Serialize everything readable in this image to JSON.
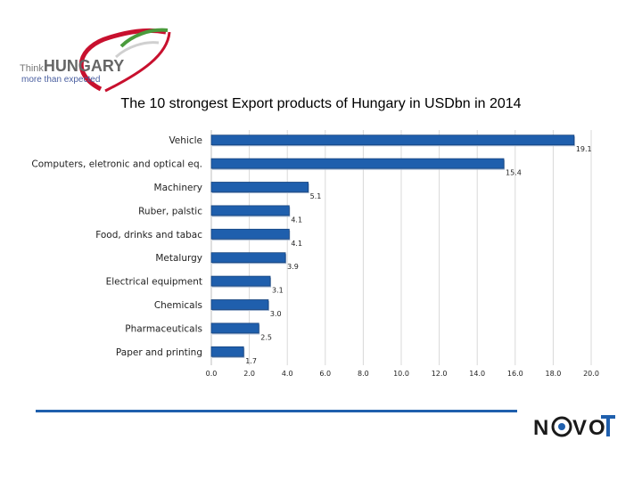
{
  "logo": {
    "line1_light": "Think",
    "line1_bold": "HUNGARY",
    "tagline": "more than expected"
  },
  "footer_logo": {
    "text_left": "N",
    "text_right": "V",
    "text_end": "O",
    "icon": "eye-icon",
    "rule_color": "#1f5fad"
  },
  "chart_data": {
    "type": "bar",
    "orientation": "horizontal",
    "title": "The 10 strongest Export products of Hungary in USDbn in 2014",
    "xlabel": "",
    "ylabel": "",
    "xlim": [
      0,
      20
    ],
    "ticks": [
      "0.0",
      "2.0",
      "4.0",
      "6.0",
      "8.0",
      "10.0",
      "12.0",
      "14.0",
      "16.0",
      "18.0",
      "20.0"
    ],
    "categories": [
      "Vehicle",
      "Computers, eletronic and optical eq.",
      "Machinery",
      "Ruber, palstic",
      "Food, drinks and tabac",
      "Metalurgy",
      "Electrical equipment",
      "Chemicals",
      "Pharmaceuticals",
      "Paper and printing"
    ],
    "values": [
      19.1,
      15.4,
      5.1,
      4.1,
      4.1,
      3.9,
      3.1,
      3.0,
      2.5,
      1.7
    ],
    "value_labels": [
      "19.1",
      "15.4",
      "5.1",
      "4.1",
      "4.1",
      "3.9",
      "3.1",
      "3.0",
      "2.5",
      "1.7"
    ],
    "bar_color": "#1f5fad",
    "grid": true
  }
}
